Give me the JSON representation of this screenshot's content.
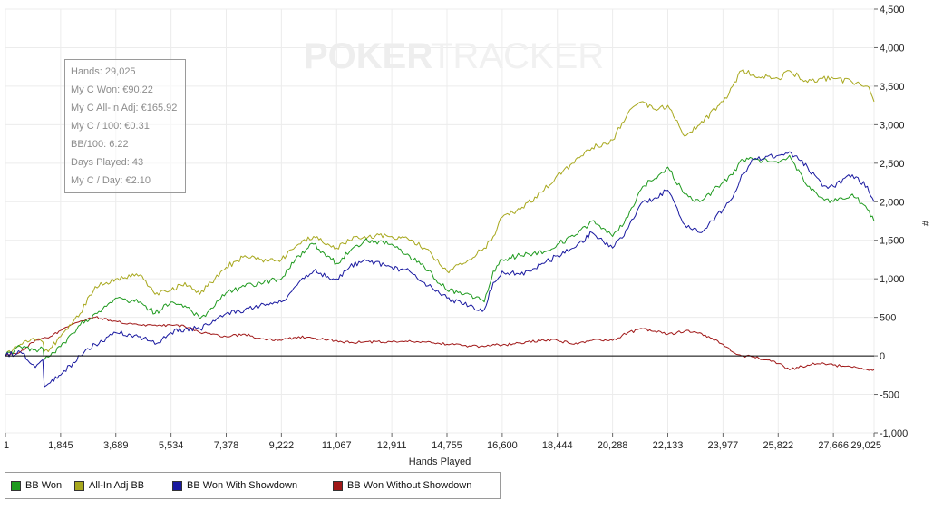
{
  "watermark": {
    "bold": "POKER",
    "light": "TRACKER"
  },
  "stats": [
    "Hands: 29,025",
    "My C Won: €90.22",
    "My C All-In Adj: €165.92",
    "My C / 100: €0.31",
    "BB/100: 6.22",
    "Days Played: 43",
    "My C / Day: €2.10"
  ],
  "chart_data": {
    "type": "line",
    "xlabel": "Hands Played",
    "ylabel": "#",
    "xlim": [
      1,
      29025
    ],
    "ylim": [
      -1000,
      4500
    ],
    "x_ticks": [
      "1",
      "1,845",
      "3,689",
      "5,534",
      "7,378",
      "9,222",
      "11,067",
      "12,911",
      "14,755",
      "16,600",
      "18,444",
      "20,288",
      "22,133",
      "23,977",
      "25,822",
      "27,666",
      "29,025"
    ],
    "y_ticks": [
      "4,500",
      "4,000",
      "3,500",
      "3,000",
      "2,500",
      "2,000",
      "1,500",
      "1,000",
      "500",
      "0",
      "-500",
      "-1,000"
    ],
    "grid": true,
    "legend_position": "bottom",
    "colors": {
      "bb_won": "#1f9a1f",
      "all_in": "#a8a81e",
      "showdown": "#1a1aa0",
      "non_showdown": "#a01818"
    },
    "series": [
      {
        "name": "BB Won",
        "color": "#1f9a1f",
        "x": [
          1,
          500,
          1000,
          1250,
          1300,
          1500,
          1845,
          2500,
          3000,
          3689,
          4500,
          5000,
          5534,
          6000,
          6500,
          7000,
          7378,
          8000,
          8500,
          9222,
          9800,
          10300,
          11067,
          11500,
          12000,
          12911,
          13500,
          14000,
          14755,
          15500,
          16000,
          16300,
          16600,
          17200,
          18000,
          18444,
          19000,
          19600,
          20288,
          20800,
          21300,
          21700,
          22133,
          22700,
          23200,
          23977,
          24300,
          24600,
          25000,
          25822,
          26200,
          26800,
          27300,
          27666,
          28300,
          28800,
          29025
        ],
        "y": [
          0,
          120,
          80,
          100,
          -50,
          0,
          120,
          400,
          550,
          750,
          700,
          550,
          700,
          650,
          480,
          650,
          820,
          900,
          950,
          1000,
          1300,
          1450,
          1200,
          1350,
          1500,
          1450,
          1300,
          1150,
          850,
          800,
          700,
          1100,
          1250,
          1300,
          1350,
          1450,
          1550,
          1750,
          1550,
          1800,
          2200,
          2300,
          2450,
          2100,
          2000,
          2250,
          2350,
          2550,
          2550,
          2500,
          2600,
          2200,
          2050,
          2000,
          2100,
          1900,
          1750
        ]
      },
      {
        "name": "All-In Adj BB",
        "color": "#a8a81e",
        "x": [
          1,
          500,
          1000,
          1250,
          1300,
          1500,
          1845,
          2500,
          3000,
          3689,
          4500,
          5000,
          5534,
          6000,
          6500,
          7000,
          7378,
          8000,
          8500,
          9222,
          9800,
          10300,
          11067,
          11500,
          12000,
          12911,
          13500,
          14000,
          14755,
          15500,
          16000,
          16300,
          16600,
          17200,
          18000,
          18444,
          19000,
          19600,
          20288,
          20800,
          21300,
          21700,
          22133,
          22700,
          23200,
          23977,
          24300,
          24600,
          25000,
          25822,
          26200,
          26800,
          27300,
          27666,
          28300,
          28800,
          29025
        ],
        "y": [
          0,
          150,
          200,
          180,
          60,
          100,
          250,
          550,
          900,
          1000,
          1050,
          800,
          850,
          950,
          800,
          1000,
          1150,
          1300,
          1250,
          1250,
          1450,
          1550,
          1400,
          1500,
          1550,
          1550,
          1500,
          1400,
          1100,
          1250,
          1400,
          1550,
          1800,
          1900,
          2150,
          2350,
          2500,
          2700,
          2800,
          3150,
          3300,
          3200,
          3250,
          2850,
          3000,
          3300,
          3500,
          3700,
          3650,
          3600,
          3700,
          3550,
          3600,
          3600,
          3550,
          3500,
          3300
        ]
      },
      {
        "name": "BB Won With Showdown",
        "color": "#1a1aa0",
        "x": [
          1,
          500,
          1000,
          1250,
          1300,
          1500,
          1845,
          2500,
          3000,
          3689,
          4500,
          5000,
          5534,
          6000,
          6500,
          7000,
          7378,
          8000,
          8500,
          9222,
          9800,
          10300,
          11067,
          11500,
          12000,
          12911,
          13500,
          14000,
          14755,
          15500,
          16000,
          16300,
          16600,
          17200,
          18000,
          18444,
          19000,
          19600,
          20288,
          20800,
          21300,
          21700,
          22133,
          22700,
          23200,
          23977,
          24300,
          24600,
          25000,
          25822,
          26200,
          26800,
          27300,
          27666,
          28300,
          28800,
          29025
        ],
        "y": [
          0,
          50,
          -150,
          -50,
          -400,
          -350,
          -250,
          0,
          150,
          300,
          250,
          150,
          300,
          350,
          350,
          450,
          550,
          600,
          650,
          700,
          950,
          1100,
          1000,
          1150,
          1250,
          1150,
          1100,
          950,
          750,
          650,
          600,
          950,
          1100,
          1050,
          1200,
          1300,
          1400,
          1600,
          1400,
          1650,
          2000,
          2050,
          2150,
          1700,
          1600,
          1900,
          2050,
          2350,
          2550,
          2600,
          2650,
          2450,
          2200,
          2200,
          2350,
          2200,
          2000
        ]
      },
      {
        "name": "BB Won Without Showdown",
        "color": "#a01818",
        "x": [
          1,
          500,
          1000,
          1250,
          1300,
          1500,
          1845,
          2500,
          3000,
          3689,
          4500,
          5000,
          5534,
          6000,
          6500,
          7000,
          7378,
          8000,
          8500,
          9222,
          9800,
          10300,
          11067,
          11500,
          12000,
          12911,
          13500,
          14000,
          14755,
          15500,
          16000,
          16300,
          16600,
          17200,
          18000,
          18444,
          19000,
          19600,
          20288,
          20800,
          21300,
          21700,
          22133,
          22700,
          23200,
          23977,
          24300,
          24600,
          25000,
          25822,
          26200,
          26800,
          27300,
          27666,
          28300,
          28800,
          29025
        ],
        "y": [
          0,
          50,
          200,
          230,
          240,
          250,
          330,
          450,
          500,
          450,
          400,
          400,
          400,
          380,
          300,
          280,
          250,
          280,
          230,
          200,
          250,
          230,
          200,
          170,
          180,
          180,
          200,
          180,
          150,
          130,
          120,
          150,
          140,
          170,
          200,
          200,
          150,
          200,
          200,
          300,
          350,
          320,
          280,
          320,
          300,
          150,
          50,
          0,
          -10,
          -100,
          -180,
          -120,
          -90,
          -120,
          -150,
          -180,
          -180
        ]
      }
    ]
  },
  "legend": [
    {
      "label": "BB Won",
      "color": "#1f9a1f"
    },
    {
      "label": "All-In Adj BB",
      "color": "#a8a81e"
    },
    {
      "label": "BB Won With Showdown",
      "color": "#1a1aa0"
    },
    {
      "label": "BB Won Without Showdown",
      "color": "#a01818"
    }
  ]
}
